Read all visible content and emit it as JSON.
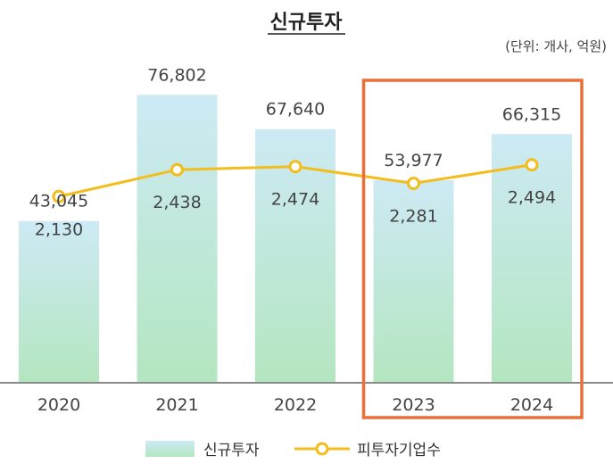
{
  "colors": {
    "bar_top": "#cdeaf5",
    "bar_bottom": "#b4e6c0",
    "line": "#f2bd1d",
    "highlight": "#e8703a",
    "axis": "#8a8a8a"
  },
  "chart_data": {
    "type": "bar",
    "title": "신규투자",
    "unit_note": "(단위: 개사, 억원)",
    "categories": [
      "2020",
      "2021",
      "2022",
      "2023",
      "2024"
    ],
    "series": [
      {
        "name": "신규투자",
        "type": "bar",
        "values": [
          43045,
          76802,
          67640,
          53977,
          66315
        ]
      },
      {
        "name": "피투자기업수",
        "type": "line",
        "values": [
          2130,
          2438,
          2474,
          2281,
          2494
        ]
      }
    ],
    "bar_value_labels": [
      "43,045",
      "76,802",
      "67,640",
      "53,977",
      "66,315"
    ],
    "line_value_labels": [
      "2,130",
      "2,438",
      "2,474",
      "2,281",
      "2,494"
    ],
    "bar_axis_range": [
      0,
      85000
    ],
    "line_axis_range": [
      0,
      3650
    ],
    "highlighted_categories": [
      "2023",
      "2024"
    ],
    "grid": false,
    "legend_position": "bottom"
  }
}
